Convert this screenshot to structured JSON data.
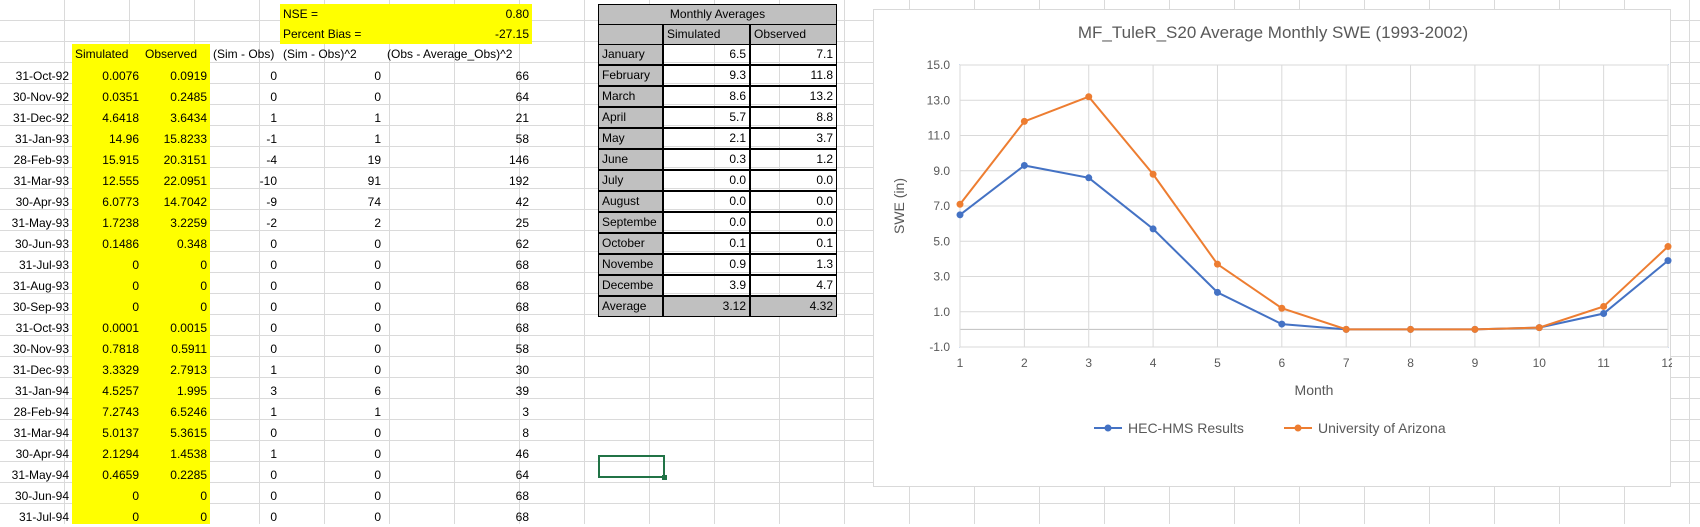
{
  "summary": {
    "nse_label": "NSE =",
    "nse_value": "0.80",
    "bias_label": "Percent Bias =",
    "bias_value": "-27.15"
  },
  "headers": [
    "Simulated",
    "Observed",
    "(Sim - Obs)",
    "(Sim - Obs)^2",
    "(Obs - Average_Obs)^2"
  ],
  "rows": [
    [
      "31-Oct-92",
      "0.0076",
      "0.0919",
      "0",
      "0",
      "66"
    ],
    [
      "30-Nov-92",
      "0.0351",
      "0.2485",
      "0",
      "0",
      "64"
    ],
    [
      "31-Dec-92",
      "4.6418",
      "3.6434",
      "1",
      "1",
      "21"
    ],
    [
      "31-Jan-93",
      "14.96",
      "15.8233",
      "-1",
      "1",
      "58"
    ],
    [
      "28-Feb-93",
      "15.915",
      "20.3151",
      "-4",
      "19",
      "146"
    ],
    [
      "31-Mar-93",
      "12.555",
      "22.0951",
      "-10",
      "91",
      "192"
    ],
    [
      "30-Apr-93",
      "6.0773",
      "14.7042",
      "-9",
      "74",
      "42"
    ],
    [
      "31-May-93",
      "1.7238",
      "3.2259",
      "-2",
      "2",
      "25"
    ],
    [
      "30-Jun-93",
      "0.1486",
      "0.348",
      "0",
      "0",
      "62"
    ],
    [
      "31-Jul-93",
      "0",
      "0",
      "0",
      "0",
      "68"
    ],
    [
      "31-Aug-93",
      "0",
      "0",
      "0",
      "0",
      "68"
    ],
    [
      "30-Sep-93",
      "0",
      "0",
      "0",
      "0",
      "68"
    ],
    [
      "31-Oct-93",
      "0.0001",
      "0.0015",
      "0",
      "0",
      "68"
    ],
    [
      "30-Nov-93",
      "0.7818",
      "0.5911",
      "0",
      "0",
      "58"
    ],
    [
      "31-Dec-93",
      "3.3329",
      "2.7913",
      "1",
      "0",
      "30"
    ],
    [
      "31-Jan-94",
      "4.5257",
      "1.995",
      "3",
      "6",
      "39"
    ],
    [
      "28-Feb-94",
      "7.2743",
      "6.5246",
      "1",
      "1",
      "3"
    ],
    [
      "31-Mar-94",
      "5.0137",
      "5.3615",
      "0",
      "0",
      "8"
    ],
    [
      "30-Apr-94",
      "2.1294",
      "1.4538",
      "1",
      "0",
      "46"
    ],
    [
      "31-May-94",
      "0.4659",
      "0.2285",
      "0",
      "0",
      "64"
    ],
    [
      "30-Jun-94",
      "0",
      "0",
      "0",
      "0",
      "68"
    ],
    [
      "31-Jul-94",
      "0",
      "0",
      "0",
      "0",
      "68"
    ]
  ],
  "monthly": {
    "title": "Monthly Averages",
    "col_sim": "Simulated",
    "col_obs": "Observed",
    "rows": [
      [
        "January",
        "6.5",
        "7.1"
      ],
      [
        "February",
        "9.3",
        "11.8"
      ],
      [
        "March",
        "8.6",
        "13.2"
      ],
      [
        "April",
        "5.7",
        "8.8"
      ],
      [
        "May",
        "2.1",
        "3.7"
      ],
      [
        "June",
        "0.3",
        "1.2"
      ],
      [
        "July",
        "0.0",
        "0.0"
      ],
      [
        "August",
        "0.0",
        "0.0"
      ],
      [
        "Septembe",
        "0.0",
        "0.0"
      ],
      [
        "October",
        "0.1",
        "0.1"
      ],
      [
        "Novembe",
        "0.9",
        "1.3"
      ],
      [
        "Decembe",
        "3.9",
        "4.7"
      ]
    ],
    "avg_label": "Average",
    "avg_sim": "3.12",
    "avg_obs": "4.32"
  },
  "chart_data": {
    "type": "line",
    "title": "MF_TuleR_S20 Average Monthly SWE (1993-2002)",
    "xlabel": "Month",
    "ylabel": "SWE (in)",
    "x": [
      1,
      2,
      3,
      4,
      5,
      6,
      7,
      8,
      9,
      10,
      11,
      12
    ],
    "xticks": [
      "1",
      "2",
      "3",
      "4",
      "5",
      "6",
      "7",
      "8",
      "9",
      "10",
      "11",
      "12"
    ],
    "ylim": [
      -1.0,
      15.0
    ],
    "yticks": [
      "15.0",
      "13.0",
      "11.0",
      "9.0",
      "7.0",
      "5.0",
      "3.0",
      "1.0",
      "-1.0"
    ],
    "grid": true,
    "legend": "bottom",
    "series": [
      {
        "name": "HEC-HMS Results",
        "color": "#4472c4",
        "values": [
          6.5,
          9.3,
          8.6,
          5.7,
          2.1,
          0.3,
          0.0,
          0.0,
          0.0,
          0.1,
          0.9,
          3.9
        ]
      },
      {
        "name": "University of Arizona",
        "color": "#ed7d31",
        "values": [
          7.1,
          11.8,
          13.2,
          8.8,
          3.7,
          1.2,
          0.0,
          0.0,
          0.0,
          0.1,
          1.3,
          4.7
        ]
      }
    ]
  }
}
